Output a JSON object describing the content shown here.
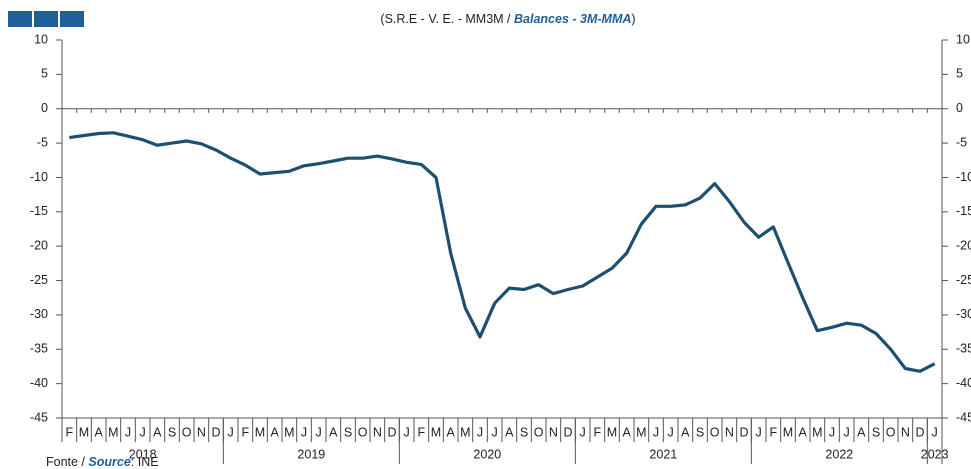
{
  "chart_data": {
    "type": "line",
    "title": {
      "prefix": "(S.R.E - V. E. - MM3M / ",
      "highlight": "Balances - 3M-MMA",
      "suffix": ")"
    },
    "source": {
      "prefix": "Fonte / ",
      "highlight": "Source",
      "suffix": ": INE"
    },
    "categories": [
      "F",
      "M",
      "A",
      "M",
      "J",
      "J",
      "A",
      "S",
      "O",
      "N",
      "D",
      "J",
      "F",
      "M",
      "A",
      "M",
      "J",
      "J",
      "A",
      "S",
      "O",
      "N",
      "D",
      "J",
      "F",
      "M",
      "A",
      "M",
      "J",
      "J",
      "A",
      "S",
      "O",
      "N",
      "D",
      "J",
      "F",
      "M",
      "A",
      "M",
      "J",
      "J",
      "A",
      "S",
      "O",
      "N",
      "D",
      "J",
      "F",
      "M",
      "A",
      "M",
      "J",
      "J",
      "A",
      "S",
      "O",
      "N",
      "D",
      "J"
    ],
    "years": [
      "2018",
      "2019",
      "2020",
      "2021",
      "2022",
      "2023"
    ],
    "series": [
      {
        "color": "#1d506f",
        "values": [
          -4.2,
          -3.9,
          -3.6,
          -3.5,
          -4.0,
          -4.5,
          -5.3,
          -5.0,
          -4.7,
          -5.1,
          -6.0,
          -7.2,
          -8.2,
          -9.5,
          -9.3,
          -9.1,
          -8.3,
          -8.0,
          -7.6,
          -7.2,
          -7.2,
          -6.9,
          -7.3,
          -7.8,
          -8.1,
          -10.0,
          -21.0,
          -29.0,
          -33.2,
          -28.3,
          -26.1,
          -26.3,
          -25.6,
          -26.9,
          -26.3,
          -25.8,
          -24.5,
          -23.2,
          -21.0,
          -16.8,
          -14.2,
          -14.2,
          -14.0,
          -13.0,
          -10.9,
          -13.5,
          -16.5,
          -18.7,
          -17.2,
          -22.4,
          -27.5,
          -32.3,
          -31.8,
          -31.2,
          -31.5,
          -32.7,
          -35.0,
          -37.8,
          -38.2,
          -37.1
        ]
      }
    ],
    "ylim": [
      -45,
      10
    ],
    "yticks": [
      10,
      5,
      0,
      -5,
      -10,
      -15,
      -20,
      -25,
      -30,
      -35,
      -40,
      -45
    ]
  }
}
